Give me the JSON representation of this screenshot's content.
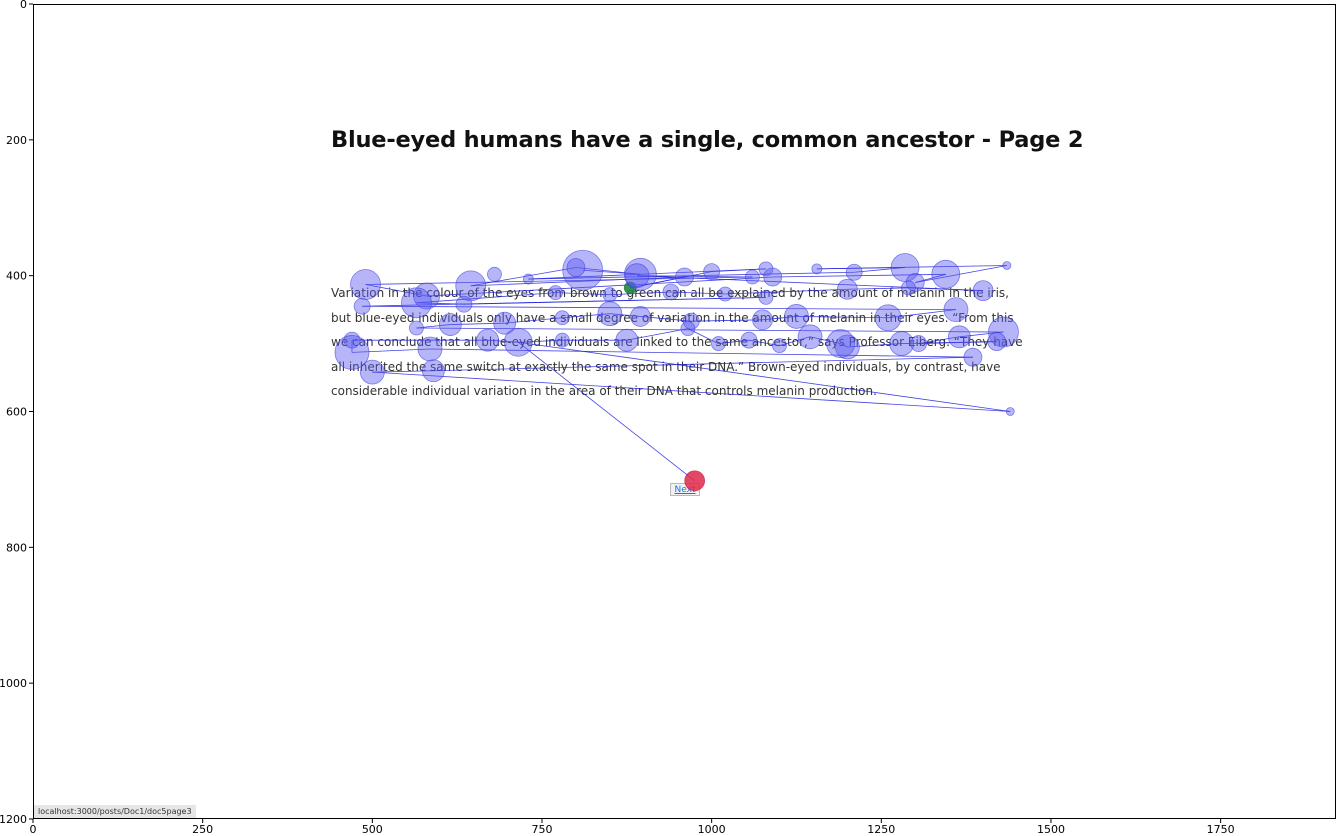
{
  "page": {
    "title": "Blue-eyed humans have a single, common ancestor - Page 2",
    "paragraph": "Variation in the colour of the eyes from brown to green can all be explained by the amount of melanin in the iris, but blue-eyed individuals only have a small degree of variation in the amount of melanin in their eyes. “From this we can conclude that all blue-eyed individuals are linked to the same ancestor,” says Professor Eiberg. “They have all inherited the same switch at exactly the same spot in their DNA.” Brown-eyed individuals, by contrast, have considerable individual variation in the area of their DNA that controls melanin production.",
    "next_label": "Next",
    "status_url": "localhost:3000/posts/Doc1/doc5page3"
  },
  "chart_data": {
    "type": "scatter",
    "title": "",
    "xlabel": "",
    "ylabel": "",
    "xlim": [
      0,
      1920
    ],
    "ylim": [
      1200,
      0
    ],
    "xticks": [
      0,
      250,
      500,
      750,
      1000,
      1250,
      1500,
      1750
    ],
    "yticks": [
      0,
      200,
      400,
      600,
      800,
      1000,
      1200
    ],
    "grid": false,
    "colors": {
      "fixation": "#5a5af0",
      "path": "#2222dd",
      "start": "#1f8a3c",
      "end": "#e0284a"
    },
    "fixations": [
      [
        880,
        418,
        6
      ],
      [
        645,
        415,
        15
      ],
      [
        490,
        413,
        15
      ],
      [
        580,
        430,
        13
      ],
      [
        680,
        398,
        7
      ],
      [
        730,
        405,
        5
      ],
      [
        810,
        392,
        20
      ],
      [
        800,
        388,
        9
      ],
      [
        895,
        398,
        16
      ],
      [
        890,
        400,
        12
      ],
      [
        960,
        402,
        9
      ],
      [
        1000,
        394,
        8
      ],
      [
        1060,
        402,
        7
      ],
      [
        1080,
        390,
        7
      ],
      [
        1090,
        402,
        9
      ],
      [
        1155,
        390,
        5
      ],
      [
        1210,
        395,
        8
      ],
      [
        1285,
        388,
        14
      ],
      [
        1345,
        398,
        14
      ],
      [
        1435,
        385,
        4
      ],
      [
        1300,
        410,
        9
      ],
      [
        1400,
        422,
        10
      ],
      [
        1290,
        418,
        7
      ],
      [
        1200,
        420,
        10
      ],
      [
        1080,
        432,
        7
      ],
      [
        1020,
        427,
        7
      ],
      [
        940,
        424,
        8
      ],
      [
        850,
        428,
        7
      ],
      [
        770,
        425,
        7
      ],
      [
        635,
        442,
        8
      ],
      [
        565,
        440,
        15
      ],
      [
        485,
        445,
        8
      ],
      [
        1360,
        450,
        12
      ],
      [
        1260,
        462,
        13
      ],
      [
        1125,
        460,
        12
      ],
      [
        1075,
        465,
        10
      ],
      [
        970,
        467,
        8
      ],
      [
        895,
        460,
        10
      ],
      [
        850,
        456,
        12
      ],
      [
        780,
        462,
        7
      ],
      [
        695,
        470,
        11
      ],
      [
        615,
        472,
        11
      ],
      [
        565,
        477,
        7
      ],
      [
        1430,
        483,
        15
      ],
      [
        1365,
        490,
        11
      ],
      [
        1305,
        500,
        8
      ],
      [
        1420,
        497,
        9
      ],
      [
        1280,
        500,
        12
      ],
      [
        1200,
        505,
        12
      ],
      [
        1190,
        500,
        14
      ],
      [
        1145,
        490,
        12
      ],
      [
        1100,
        503,
        7
      ],
      [
        1055,
        495,
        8
      ],
      [
        1010,
        500,
        7
      ],
      [
        965,
        478,
        7
      ],
      [
        875,
        495,
        11
      ],
      [
        780,
        495,
        7
      ],
      [
        715,
        498,
        14
      ],
      [
        670,
        495,
        11
      ],
      [
        585,
        508,
        12
      ],
      [
        470,
        495,
        8
      ],
      [
        470,
        513,
        17
      ],
      [
        1385,
        520,
        9
      ],
      [
        590,
        540,
        11
      ],
      [
        500,
        542,
        12
      ],
      [
        1440,
        600,
        4
      ],
      [
        975,
        702,
        10
      ]
    ],
    "path_order": [
      6,
      8,
      7,
      1,
      10,
      0,
      11,
      13,
      5,
      16,
      17,
      15,
      19,
      20,
      18,
      14,
      3,
      2,
      12,
      9,
      21,
      22,
      23,
      25,
      26,
      27,
      28,
      30,
      29,
      24,
      31,
      32,
      33,
      34,
      35,
      36,
      37,
      38,
      39,
      40,
      41,
      42,
      43,
      44,
      45,
      46,
      47,
      48,
      49,
      50,
      51,
      52,
      53,
      54,
      55,
      56,
      57,
      58,
      60,
      61,
      59,
      62,
      63,
      64,
      65,
      57,
      66
    ]
  }
}
